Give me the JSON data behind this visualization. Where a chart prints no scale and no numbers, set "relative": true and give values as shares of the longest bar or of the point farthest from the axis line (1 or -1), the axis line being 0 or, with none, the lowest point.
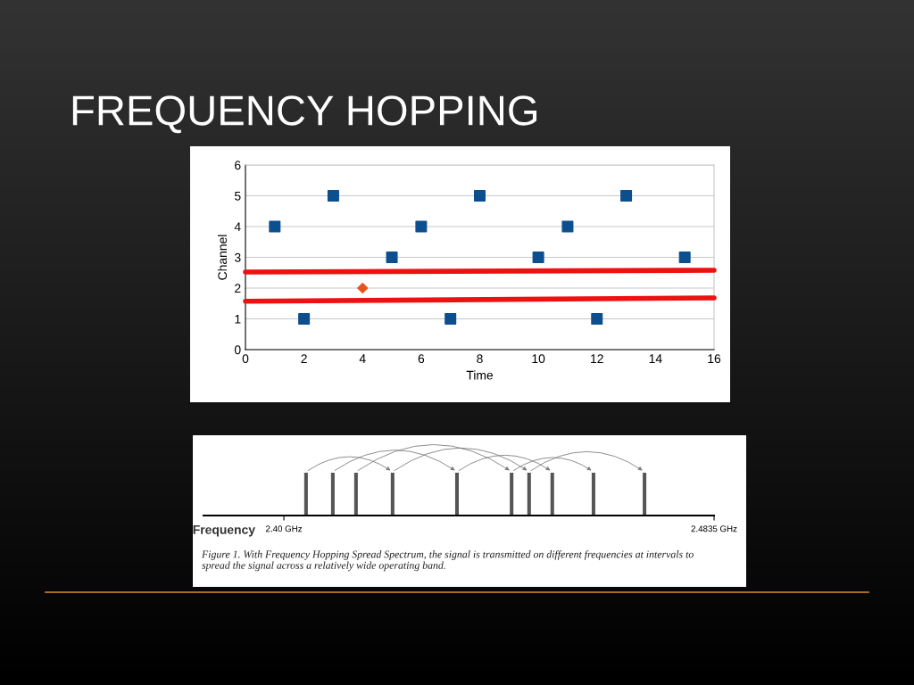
{
  "chart_data": [
    {
      "type": "scatter",
      "title": "FREQUENCY HOPPING",
      "xlabel": "Time",
      "ylabel": "Channel",
      "xlim": [
        0,
        16
      ],
      "xticks": [
        0,
        2,
        4,
        6,
        8,
        10,
        12,
        14,
        16
      ],
      "ylim": [
        0,
        6
      ],
      "yticks": [
        0,
        1,
        2,
        3,
        4,
        5,
        6
      ],
      "grid": "y",
      "legend": false,
      "series": [
        {
          "type": "scatter",
          "marker": "square",
          "color": "#0b4f8f",
          "x": [
            1,
            2,
            3,
            5,
            6,
            7,
            8,
            10,
            11,
            12,
            13,
            15
          ],
          "values": [
            4,
            1,
            5,
            3,
            4,
            1,
            5,
            3,
            4,
            1,
            5,
            3
          ]
        },
        {
          "type": "scatter",
          "marker": "diamond",
          "color": "#e8541c",
          "x": [
            4
          ],
          "values": [
            2
          ]
        },
        {
          "type": "line",
          "marker": "none",
          "line_style": "solid",
          "color": "#ee1111",
          "x": [
            0,
            16
          ],
          "values": [
            2.52,
            2.58
          ]
        },
        {
          "type": "line",
          "marker": "none",
          "line_style": "solid",
          "color": "#ee1111",
          "x": [
            0,
            16
          ],
          "values": [
            1.57,
            1.68
          ]
        }
      ]
    },
    {
      "type": "bar",
      "relative": true,
      "xlabel": "Frequency",
      "x": [
        2.4043,
        2.4095,
        2.414,
        2.4211,
        2.4336,
        2.4442,
        2.4476,
        2.4521,
        2.4601,
        2.47
      ],
      "values": [
        1,
        1,
        1,
        1,
        1,
        1,
        1,
        1,
        1,
        1
      ],
      "color": "#555555",
      "xlim": [
        2.3844,
        2.4835
      ],
      "xticks": [
        {
          "value": 2.4,
          "label": "2.40 GHz"
        },
        {
          "value": 2.4835,
          "label": "2.4835 GHz"
        }
      ],
      "annotations": [
        "Figure 1. With Frequency Hopping Spread Spectrum, the signal is transmitted on different frequencies at intervals to spread the signal across a relatively wide operating band."
      ]
    }
  ]
}
